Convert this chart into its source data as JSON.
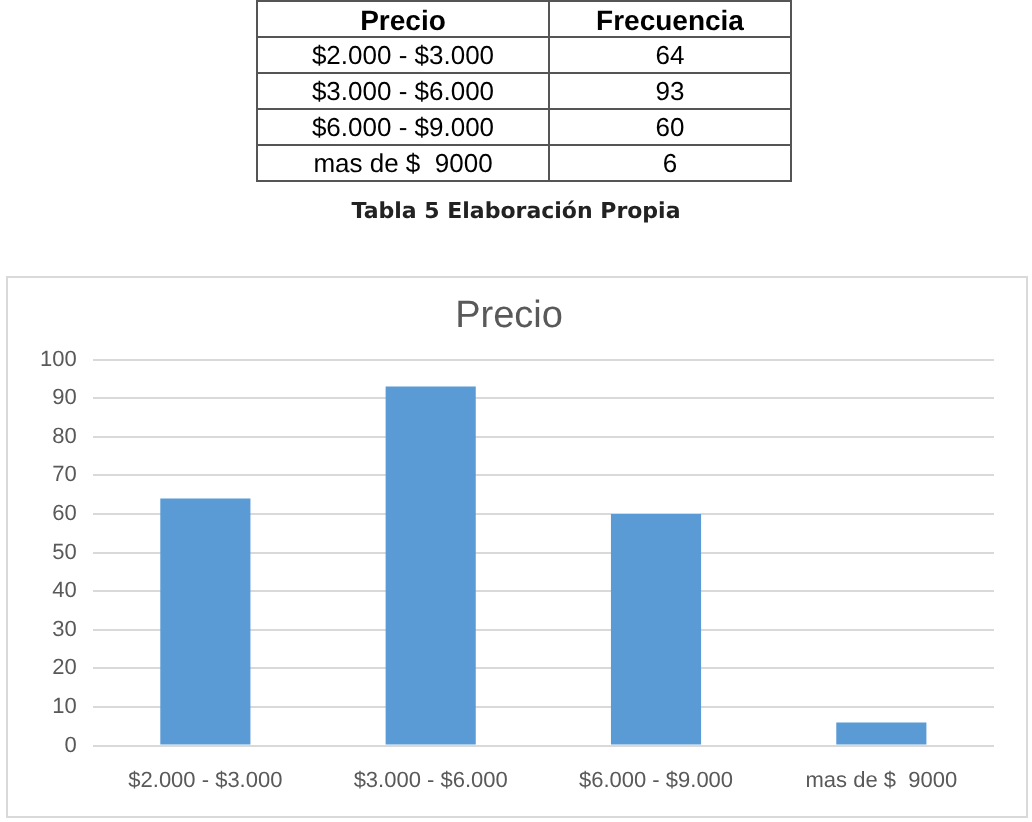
{
  "chart_data": {
    "type": "bar",
    "title": "Precio",
    "categories": [
      "$2.000 - $3.000",
      "$3.000 - $6.000",
      "$6.000 - $9.000",
      "mas de $  9000"
    ],
    "values": [
      64,
      93,
      60,
      6
    ],
    "color": "#5b9bd5",
    "ylim": [
      0,
      100
    ],
    "yticks": [
      0,
      10,
      20,
      30,
      40,
      50,
      60,
      70,
      80,
      90,
      100
    ],
    "grid": "y",
    "legend": false,
    "annotations": [
      "Precio",
      "Frecuencia",
      "64",
      "93",
      "60",
      "6",
      "Tabla 5 Elaboración Propia"
    ]
  }
}
